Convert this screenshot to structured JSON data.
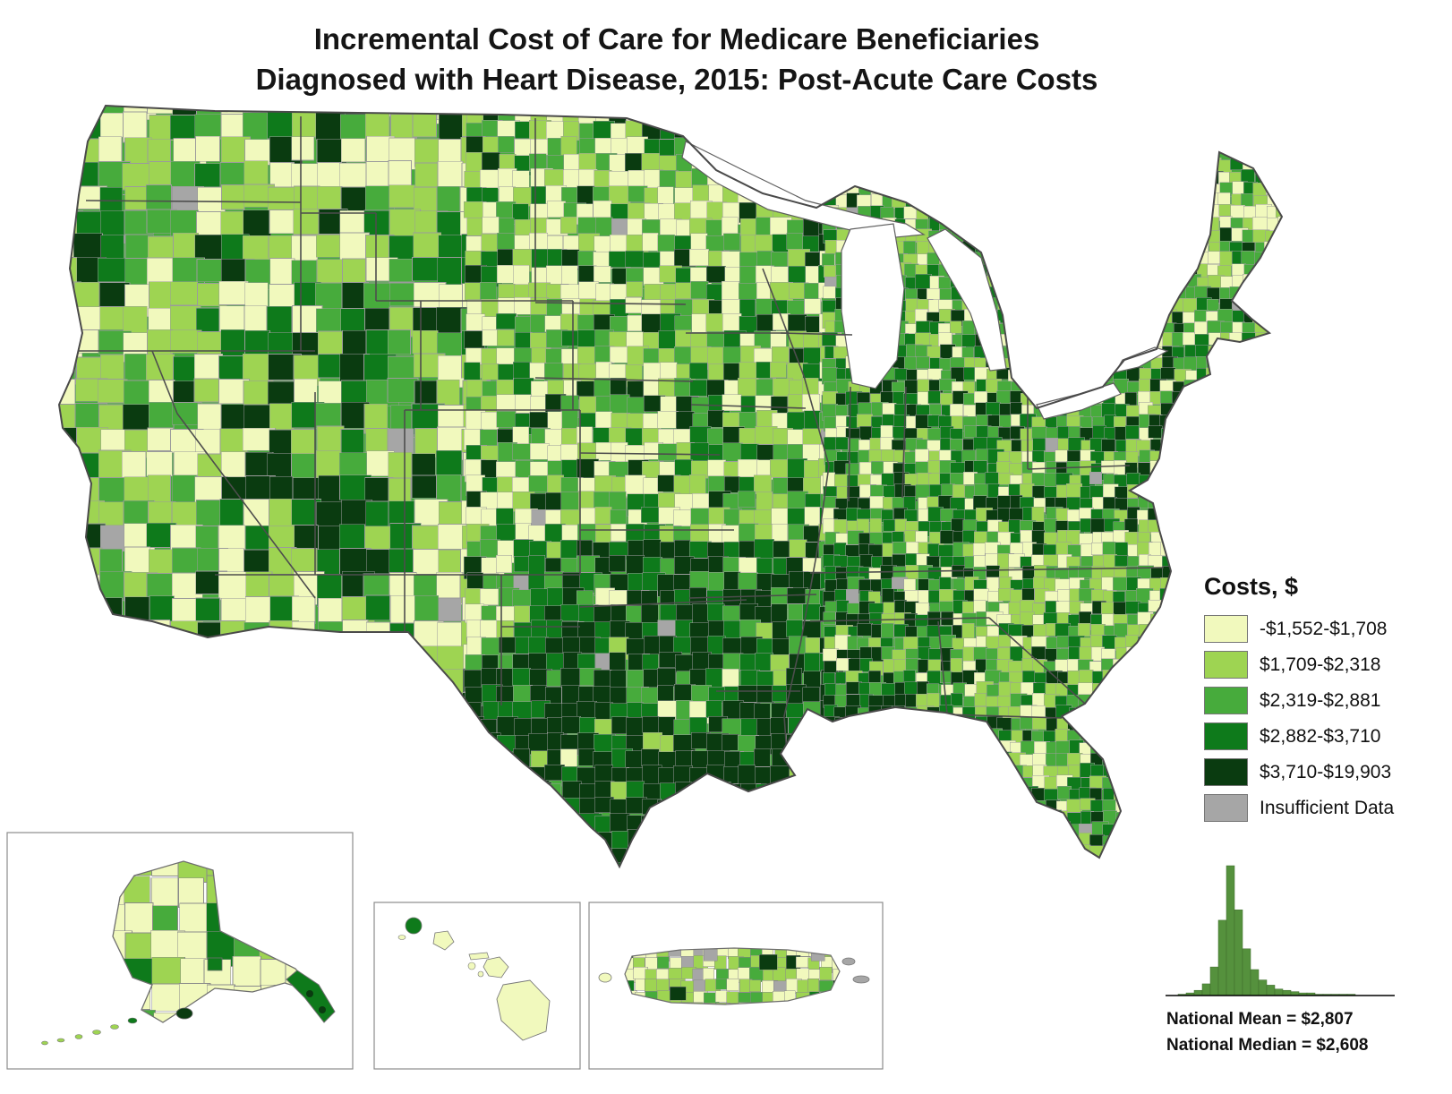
{
  "title": {
    "line1": "Incremental Cost of Care for Medicare Beneficiaries",
    "line2": "Diagnosed with Heart Disease, 2015: Post-Acute Care Costs"
  },
  "legend": {
    "title": "Costs, $",
    "items": [
      {
        "label": "-$1,552-$1,708",
        "color": "#f1f9bd"
      },
      {
        "label": "$1,709-$2,318",
        "color": "#9ed452"
      },
      {
        "label": "$2,319-$2,881",
        "color": "#47ab3c"
      },
      {
        "label": "$2,882-$3,710",
        "color": "#0e7a1b"
      },
      {
        "label": "$3,710-$19,903",
        "color": "#0a3b10"
      },
      {
        "label": "Insufficient Data",
        "color": "#a6a6a6"
      }
    ]
  },
  "stats": {
    "mean": "National Mean = $2,807",
    "median": "National Median = $2,608"
  },
  "map": {
    "county_border_color": "#9b9b9b",
    "state_border_color": "#4d4d4d",
    "outline_color": "#4a4a4a",
    "water_color": "#ffffff"
  },
  "chart_data": [
    {
      "type": "heatmap",
      "subtype": "county-choropleth",
      "title": "Incremental Cost of Care for Medicare Beneficiaries Diagnosed with Heart Disease, 2015: Post-Acute Care Costs",
      "legend_title": "Costs, $",
      "classes": [
        "-$1,552-$1,708",
        "$1,709-$2,318",
        "$2,319-$2,881",
        "$2,882-$3,710",
        "$3,710-$19,903",
        "Insufficient Data"
      ],
      "class_colors": [
        "#f1f9bd",
        "#9ed452",
        "#47ab3c",
        "#0e7a1b",
        "#0a3b10",
        "#a6a6a6"
      ],
      "national_mean_usd": 2807,
      "national_median_usd": 2608
    },
    {
      "type": "bar",
      "subtype": "histogram",
      "title": "",
      "xlabel": "",
      "ylabel": "",
      "values": [
        1,
        2,
        4,
        9,
        22,
        58,
        100,
        66,
        36,
        20,
        12,
        8,
        5,
        4,
        3,
        2,
        2,
        1,
        1,
        1,
        1,
        1
      ],
      "units": "relative bar height (axes unlabeled in figure)",
      "color": "#55913d",
      "annotations": [
        "National Mean = $2,807",
        "National Median = $2,608"
      ]
    }
  ]
}
